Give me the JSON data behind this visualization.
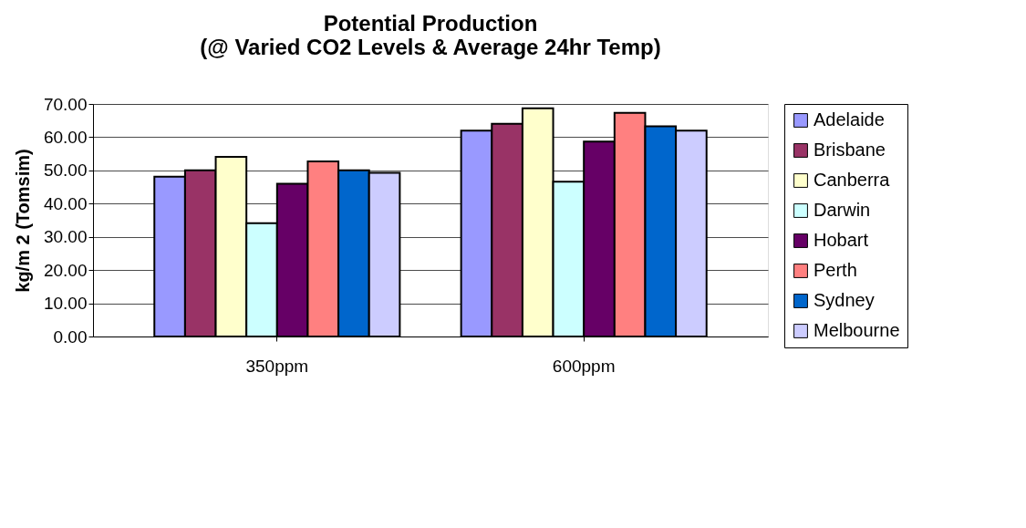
{
  "chart_data": {
    "type": "bar",
    "title": [
      "Potential Production",
      "(@ Varied CO2 Levels & Average 24hr Temp)"
    ],
    "ylabel": "kg/m 2 (Tomsim)",
    "categories": [
      "350ppm",
      "600ppm"
    ],
    "series": [
      {
        "name": "Adelaide",
        "color": "#9999ff",
        "values": [
          48.1,
          62.0
        ]
      },
      {
        "name": "Brisbane",
        "color": "#993366",
        "values": [
          50.0,
          64.0
        ]
      },
      {
        "name": "Canberra",
        "color": "#ffffcc",
        "values": [
          54.1,
          68.7
        ]
      },
      {
        "name": "Darwin",
        "color": "#ccffff",
        "values": [
          34.1,
          46.6
        ]
      },
      {
        "name": "Hobart",
        "color": "#660066",
        "values": [
          46.0,
          58.7
        ]
      },
      {
        "name": "Perth",
        "color": "#ff8080",
        "values": [
          52.7,
          67.3
        ]
      },
      {
        "name": "Sydney",
        "color": "#0066cc",
        "values": [
          50.0,
          63.3
        ]
      },
      {
        "name": "Melbourne",
        "color": "#ccccff",
        "values": [
          49.3,
          62.0
        ]
      }
    ],
    "ylim": [
      0,
      70
    ],
    "yticks": [
      {
        "value": 0,
        "label": "0.00"
      },
      {
        "value": 10,
        "label": "10.00"
      },
      {
        "value": 20,
        "label": "20.00"
      },
      {
        "value": 30,
        "label": "30.00"
      },
      {
        "value": 40,
        "label": "40.00"
      },
      {
        "value": 50,
        "label": "50.00"
      },
      {
        "value": 60,
        "label": "60.00"
      },
      {
        "value": 70,
        "label": "70.00"
      }
    ],
    "grid": "y",
    "legend": "right"
  }
}
